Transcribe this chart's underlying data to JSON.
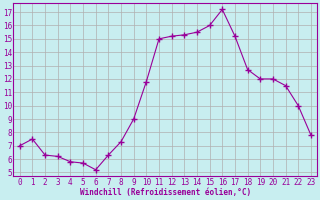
{
  "hours": [
    0,
    1,
    2,
    3,
    4,
    5,
    6,
    7,
    8,
    9,
    10,
    11,
    12,
    13,
    14,
    15,
    16,
    17,
    18,
    19,
    20,
    21,
    22,
    23
  ],
  "values": [
    7.0,
    7.5,
    6.3,
    6.2,
    5.8,
    5.7,
    5.2,
    6.3,
    7.3,
    9.0,
    11.8,
    15.0,
    15.2,
    15.3,
    15.5,
    16.0,
    17.2,
    15.2,
    12.7,
    12.0,
    12.0,
    11.5,
    10.0,
    7.8
  ],
  "line_color": "#990099",
  "marker": "+",
  "marker_size": 4,
  "bg_color": "#c8eef0",
  "grid_color": "#b0b0b0",
  "xlabel": "Windchill (Refroidissement éolien,°C)",
  "yticks": [
    5,
    6,
    7,
    8,
    9,
    10,
    11,
    12,
    13,
    14,
    15,
    16,
    17
  ],
  "xlim": [
    -0.5,
    23.5
  ],
  "ylim": [
    4.7,
    17.7
  ],
  "tick_color": "#990099",
  "label_color": "#990099",
  "tick_fontsize": 5.5,
  "xlabel_fontsize": 5.5
}
